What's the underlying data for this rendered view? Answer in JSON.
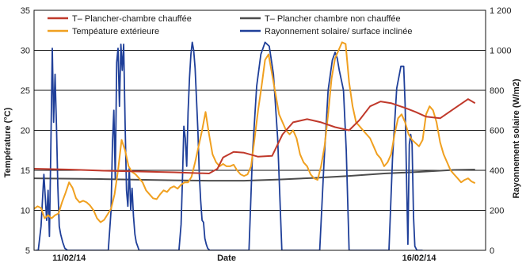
{
  "chart_data": {
    "type": "line",
    "title": "",
    "xlabel": "Date",
    "ylabel_left": "Température (°C)",
    "ylabel_right": "Rayonnement solaire (W/m2)",
    "ylim_left": [
      5,
      35
    ],
    "ylim_right": [
      0,
      1200
    ],
    "yticks_left": [
      "5",
      "10",
      "15",
      "20",
      "25",
      "30",
      "35"
    ],
    "yticks_right": [
      "0",
      "200",
      "400",
      "600",
      "800",
      "1 000",
      "1 200"
    ],
    "x_range": [
      0,
      6.45
    ],
    "x_tick_labels": [
      {
        "x": 0.5,
        "label": "11/02/14"
      },
      {
        "x": 2.75,
        "label": "Date"
      },
      {
        "x": 5.5,
        "label": "16/02/14"
      }
    ],
    "grid": "horizontal",
    "legend_position": "top",
    "colors": {
      "t_plancher_chauffee": "#c0392b",
      "t_plancher_non_chauffee": "#4d4d4d",
      "temperature_exterieure": "#f0a020",
      "rayonnement": "#1f3f99"
    },
    "series": [
      {
        "name": "T– Plancher-chambre chauffée",
        "key": "t_plancher_chauffee",
        "axis": "left",
        "x": [
          0,
          0.5,
          1,
          1.5,
          2,
          2.5,
          2.62,
          2.7,
          2.85,
          3.0,
          3.2,
          3.4,
          3.55,
          3.7,
          3.9,
          4.1,
          4.3,
          4.5,
          4.65,
          4.8,
          4.95,
          5.1,
          5.3,
          5.45,
          5.6,
          5.8,
          6.0,
          6.2,
          6.3
        ],
        "values": [
          15.2,
          15.1,
          14.95,
          14.85,
          14.75,
          14.6,
          15.2,
          16.6,
          17.3,
          17.2,
          16.7,
          16.8,
          19.5,
          21.0,
          21.4,
          21.0,
          20.4,
          20.0,
          21.3,
          23.0,
          23.6,
          23.4,
          22.8,
          22.3,
          21.7,
          21.5,
          22.7,
          23.9,
          23.4
        ]
      },
      {
        "name": "T– Plancher chambre non chauffée",
        "key": "t_plancher_non_chauffee",
        "axis": "left",
        "x": [
          0,
          1,
          2,
          2.5,
          3,
          3.5,
          4,
          4.5,
          5,
          5.5,
          6,
          6.3
        ],
        "values": [
          14.0,
          13.9,
          13.75,
          13.7,
          13.7,
          13.85,
          14.05,
          14.3,
          14.6,
          14.8,
          15.05,
          15.1
        ]
      },
      {
        "name": "Tempéature extérieure",
        "key": "temperature_exterieure",
        "axis": "left",
        "x": [
          0,
          0.05,
          0.1,
          0.15,
          0.2,
          0.25,
          0.3,
          0.35,
          0.4,
          0.45,
          0.5,
          0.55,
          0.6,
          0.65,
          0.7,
          0.75,
          0.8,
          0.85,
          0.9,
          0.95,
          1.0,
          1.05,
          1.1,
          1.15,
          1.2,
          1.25,
          1.3,
          1.35,
          1.4,
          1.45,
          1.5,
          1.55,
          1.6,
          1.65,
          1.7,
          1.75,
          1.8,
          1.85,
          1.9,
          1.95,
          2.0,
          2.05,
          2.1,
          2.15,
          2.2,
          2.25,
          2.3,
          2.35,
          2.4,
          2.45,
          2.5,
          2.55,
          2.6,
          2.65,
          2.7,
          2.75,
          2.8,
          2.85,
          2.9,
          2.95,
          3.0,
          3.05,
          3.1,
          3.15,
          3.2,
          3.25,
          3.3,
          3.35,
          3.4,
          3.45,
          3.5,
          3.55,
          3.6,
          3.65,
          3.7,
          3.75,
          3.8,
          3.85,
          3.9,
          3.95,
          4.0,
          4.05,
          4.1,
          4.15,
          4.2,
          4.25,
          4.3,
          4.35,
          4.4,
          4.45,
          4.5,
          4.55,
          4.6,
          4.65,
          4.7,
          4.75,
          4.8,
          4.85,
          4.9,
          4.95,
          5.0,
          5.05,
          5.1,
          5.15,
          5.2,
          5.25,
          5.3,
          5.35,
          5.4,
          5.45,
          5.5,
          5.55,
          5.6,
          5.65,
          5.7,
          5.75,
          5.8,
          5.85,
          5.9,
          5.95,
          6.0,
          6.05,
          6.1,
          6.15,
          6.2,
          6.25,
          6.3
        ],
        "values": [
          10.2,
          10.5,
          10.3,
          9.0,
          9.4,
          9.0,
          9.4,
          9.6,
          11.0,
          12.2,
          13.5,
          12.8,
          11.5,
          11.0,
          11.2,
          11.0,
          10.6,
          10.0,
          9.0,
          8.5,
          8.8,
          9.5,
          10.2,
          12.0,
          15.0,
          18.8,
          17.5,
          15.5,
          14.8,
          14.5,
          14.0,
          13.5,
          12.5,
          12.0,
          11.5,
          11.4,
          12.0,
          12.5,
          12.3,
          12.8,
          13.0,
          12.7,
          13.2,
          13.5,
          13.5,
          14.2,
          16.0,
          18.0,
          20.0,
          22.3,
          19.5,
          17.0,
          16.0,
          15.5,
          15.8,
          15.5,
          15.5,
          15.7,
          15.0,
          14.5,
          14.3,
          14.5,
          15.5,
          19.0,
          22.5,
          25.5,
          28.8,
          29.5,
          27.0,
          24.5,
          22.0,
          21.0,
          20.0,
          19.5,
          20.0,
          19.0,
          17.0,
          16.0,
          15.5,
          14.5,
          14.0,
          13.8,
          15.5,
          18.0,
          22.0,
          26.5,
          29.0,
          30.0,
          31.0,
          30.8,
          26.0,
          23.0,
          21.0,
          20.5,
          20.0,
          19.5,
          19.0,
          18.0,
          17.0,
          16.5,
          15.5,
          16.0,
          17.0,
          19.5,
          21.5,
          22.0,
          21.0,
          19.5,
          18.8,
          18.4,
          18.0,
          18.8,
          22.0,
          23.0,
          22.5,
          21.0,
          18.5,
          17.0,
          16.0,
          15.0,
          14.5,
          14.0,
          13.5,
          13.8,
          14.0,
          13.6,
          13.4
        ]
      },
      {
        "name": "Rayonnement solaire/ surface  inclinée",
        "key": "rayonnement",
        "axis": "right",
        "x": [
          0.02,
          0.06,
          0.1,
          0.14,
          0.18,
          0.2,
          0.22,
          0.24,
          0.26,
          0.28,
          0.3,
          0.32,
          0.34,
          0.36,
          0.38,
          0.41,
          0.44,
          0.48,
          0.51,
          0.54,
          1.02,
          1.06,
          1.1,
          1.12,
          1.14,
          1.16,
          1.18,
          1.2,
          1.22,
          1.24,
          1.26,
          1.28,
          1.3,
          1.32,
          1.34,
          1.36,
          1.38,
          1.4,
          1.42,
          1.44,
          1.46,
          1.5,
          1.54,
          2.03,
          2.07,
          2.1,
          2.12,
          2.14,
          2.16,
          2.18,
          2.2,
          2.22,
          2.24,
          2.26,
          2.28,
          2.3,
          2.32,
          2.34,
          2.36,
          2.38,
          2.4,
          2.42,
          2.44,
          2.46,
          2.48,
          2.51,
          2.54,
          3.03,
          3.07,
          3.12,
          3.18,
          3.24,
          3.3,
          3.36,
          3.42,
          3.48,
          3.54,
          4.03,
          4.08,
          4.14,
          4.2,
          4.26,
          4.3,
          4.33,
          4.36,
          4.39,
          4.42,
          4.46,
          4.5,
          4.54,
          5.02,
          5.07,
          5.12,
          5.18,
          5.24,
          5.28,
          5.3,
          5.32,
          5.34,
          5.36,
          5.38,
          5.4,
          5.42,
          5.44,
          5.47,
          5.51,
          5.55
        ],
        "values": [
          0,
          0,
          120,
          380,
          150,
          300,
          70,
          520,
          1010,
          640,
          880,
          620,
          320,
          120,
          80,
          40,
          10,
          0,
          0,
          0,
          0,
          0,
          200,
          540,
          700,
          360,
          940,
          1010,
          720,
          1030,
          900,
          1030,
          640,
          300,
          220,
          410,
          200,
          310,
          170,
          80,
          40,
          0,
          0,
          0,
          0,
          130,
          350,
          620,
          560,
          420,
          690,
          860,
          980,
          1040,
          1000,
          910,
          760,
          600,
          380,
          250,
          150,
          140,
          60,
          30,
          10,
          0,
          0,
          0,
          0,
          480,
          820,
          980,
          1040,
          1020,
          880,
          560,
          0,
          0,
          0,
          430,
          800,
          950,
          990,
          960,
          900,
          850,
          800,
          500,
          0,
          0,
          0,
          0,
          460,
          810,
          920,
          920,
          730,
          380,
          30,
          530,
          580,
          530,
          170,
          20,
          0,
          0,
          0
        ]
      }
    ]
  }
}
